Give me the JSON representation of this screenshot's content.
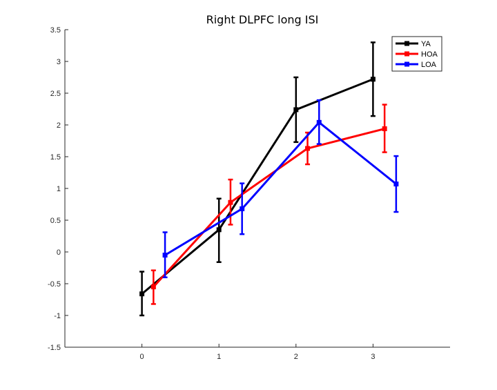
{
  "chart_data": {
    "type": "line",
    "title": "Right DLPFC long ISI",
    "xlabel": "",
    "ylabel": "",
    "xlim": [
      -1,
      4
    ],
    "ylim": [
      -1.5,
      3.5
    ],
    "xticks": [
      0,
      1,
      2,
      3
    ],
    "xtick_labels": [
      "0",
      "1",
      "2",
      "3"
    ],
    "yticks": [
      -1.5,
      -1,
      -0.5,
      0,
      0.5,
      1,
      1.5,
      2,
      2.5,
      3,
      3.5
    ],
    "ytick_labels": [
      "-1.5",
      "-1",
      "-0.5",
      "0",
      "0.5",
      "1",
      "1.5",
      "2",
      "2.5",
      "3",
      "3.5"
    ],
    "grid": false,
    "legend_position": "top-right",
    "series": [
      {
        "name": "YA",
        "color": "#000000",
        "x": [
          0,
          1,
          2,
          3
        ],
        "y": [
          -0.66,
          0.35,
          2.24,
          2.72
        ],
        "err_low": [
          -1.0,
          -0.16,
          1.73,
          2.14
        ],
        "err_high": [
          -0.31,
          0.84,
          2.75,
          3.3
        ]
      },
      {
        "name": "HOA",
        "color": "#ff0000",
        "x": [
          0.15,
          1.15,
          2.15,
          3.15
        ],
        "y": [
          -0.55,
          0.78,
          1.63,
          1.94
        ],
        "err_low": [
          -0.82,
          0.43,
          1.38,
          1.57
        ],
        "err_high": [
          -0.29,
          1.14,
          1.88,
          2.32
        ]
      },
      {
        "name": "LOA",
        "color": "#0000ff",
        "x": [
          0.3,
          1.3,
          2.3,
          3.3
        ],
        "y": [
          -0.05,
          0.68,
          2.04,
          1.07
        ],
        "err_low": [
          -0.4,
          0.28,
          1.7,
          0.63
        ],
        "err_high": [
          0.31,
          1.08,
          2.39,
          1.51
        ]
      }
    ]
  }
}
